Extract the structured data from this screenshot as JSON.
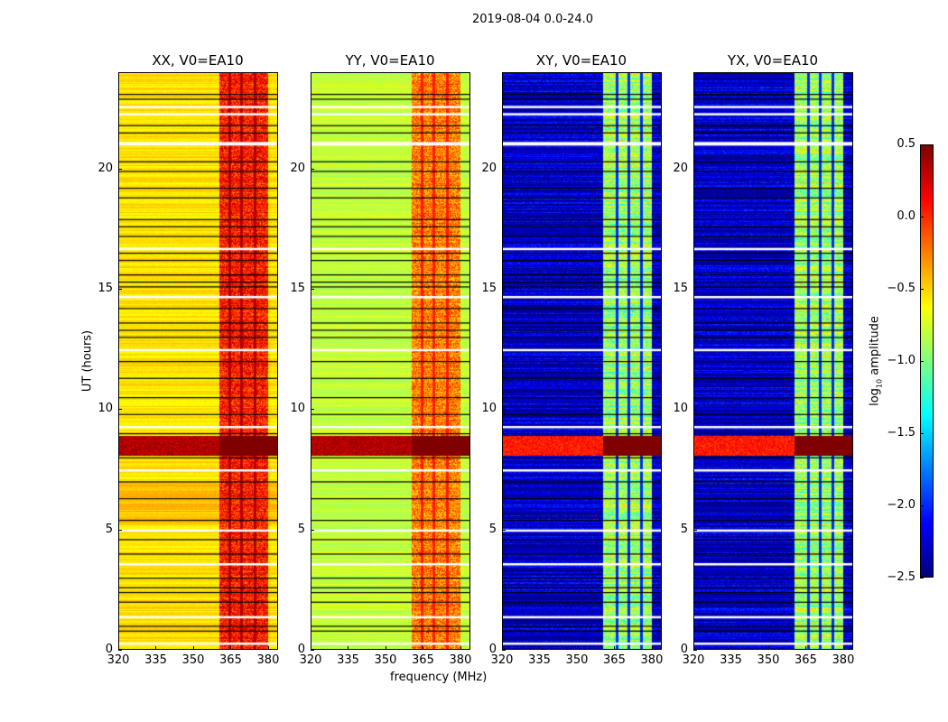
{
  "figure_title": "2019-08-04 0.0-24.0",
  "chart_data": {
    "type": "heatmap",
    "xlabel": "frequency (MHz)",
    "ylabel": "UT (hours)",
    "xlim": [
      320,
      384
    ],
    "ylim": [
      0,
      24
    ],
    "xticks": [
      320,
      335,
      350,
      365,
      380
    ],
    "yticks": [
      0,
      5,
      10,
      15,
      20
    ],
    "colorbar": {
      "label_prefix": "log",
      "label_sub": "10",
      "label_suffix": " amplitude",
      "range": [
        -2.5,
        0.5
      ],
      "ticks": [
        "0.5",
        "0.0",
        "−0.5",
        "−1.0",
        "−1.5",
        "−2.0",
        "−2.5"
      ],
      "tick_values": [
        0.5,
        0,
        -0.5,
        -1,
        -1.5,
        -2,
        -2.5
      ],
      "colormap": "jet"
    },
    "panels": [
      {
        "title": "XX, V0=EA10",
        "base_level": -0.55,
        "band_level": 0.05,
        "band_mhz": [
          360.4,
          380
        ],
        "band_gaps_mhz": [
          364.6,
          369.3,
          374.7
        ]
      },
      {
        "title": "YY, V0=EA10",
        "base_level": -0.8,
        "band_level": -0.25,
        "band_mhz": [
          360.4,
          380
        ],
        "band_gaps_mhz": [
          364.6,
          369.3,
          374.7
        ]
      },
      {
        "title": "XY, V0=EA10",
        "base_level": -2.3,
        "band_level": -0.9,
        "band_mhz": [
          360.4,
          380
        ],
        "band_gaps_mhz": [
          365.8,
          370.5,
          375.6
        ]
      },
      {
        "title": "YX, V0=EA10",
        "base_level": -2.3,
        "band_level": -0.9,
        "band_mhz": [
          360.4,
          380
        ],
        "band_gaps_mhz": [
          365.8,
          370.5,
          375.6
        ]
      }
    ],
    "strong_interval_hours": [
      8.1,
      8.9
    ],
    "flagged_hours_white": [
      0.3,
      1.4,
      3.6,
      5.0,
      7.5,
      9.3,
      12.5,
      14.7,
      16.7,
      21.1,
      22.3,
      22.6
    ],
    "gap_hours_black": [
      0.8,
      1.0,
      2.0,
      2.4,
      2.6,
      3.0,
      4.0,
      4.6,
      5.4,
      6.3,
      7.0,
      8.0,
      9.0,
      9.8,
      10.5,
      11.3,
      12.0,
      13.0,
      13.3,
      13.6,
      14.2,
      15.1,
      15.3,
      15.6,
      16.2,
      16.5,
      17.2,
      17.6,
      17.9,
      18.8,
      19.2,
      19.9,
      20.3,
      21.5,
      21.8,
      22.9,
      23.1
    ]
  }
}
